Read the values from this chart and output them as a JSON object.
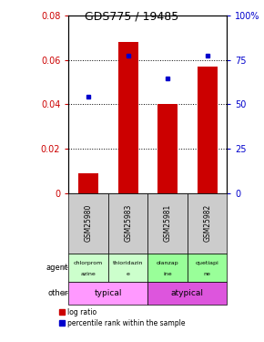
{
  "title": "GDS775 / 19485",
  "samples": [
    "GSM25980",
    "GSM25983",
    "GSM25981",
    "GSM25982"
  ],
  "log_ratio": [
    0.009,
    0.068,
    0.04,
    0.057
  ],
  "percentile_rank": [
    0.545,
    0.775,
    0.645,
    0.775
  ],
  "ylim_left": [
    0,
    0.08
  ],
  "ylim_right": [
    0,
    1.0
  ],
  "yticks_left": [
    0,
    0.02,
    0.04,
    0.06,
    0.08
  ],
  "ytick_labels_left": [
    "0",
    "0.02",
    "0.04",
    "0.06",
    "0.08"
  ],
  "yticks_right": [
    0,
    0.25,
    0.5,
    0.75,
    1.0
  ],
  "ytick_labels_right": [
    "0",
    "25",
    "50",
    "75",
    "100%"
  ],
  "agent_labels_top": [
    "chlorprom",
    "thioridazin",
    "olanzap",
    "quetiapi"
  ],
  "agent_labels_bot": [
    "azine",
    "e",
    "ine",
    "ne"
  ],
  "agent_colors": [
    "#ccffcc",
    "#ccffcc",
    "#99ff99",
    "#99ff99"
  ],
  "other_spans": [
    [
      0,
      2,
      "typical",
      "#ff99ff"
    ],
    [
      2,
      4,
      "atypical",
      "#dd55dd"
    ]
  ],
  "bar_color": "#cc0000",
  "dot_color": "#0000cc",
  "bar_width": 0.5,
  "bg_color": "#ffffff",
  "sample_bg": "#cccccc"
}
